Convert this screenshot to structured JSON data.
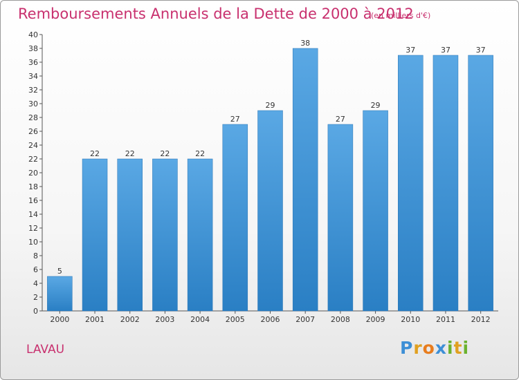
{
  "chart_data": {
    "type": "bar",
    "title": "Remboursements Annuels de la Dette de 2000 à 2012",
    "subtitle": "(en milliers d'€)",
    "categories": [
      "2000",
      "2001",
      "2002",
      "2003",
      "2004",
      "2005",
      "2006",
      "2007",
      "2008",
      "2009",
      "2010",
      "2011",
      "2012"
    ],
    "values": [
      5,
      22,
      22,
      22,
      22,
      27,
      29,
      38,
      27,
      29,
      37,
      37,
      37
    ],
    "ylim": [
      0,
      40
    ],
    "ytick_step": 2,
    "xlabel": "",
    "ylabel": "",
    "bar_color_top": "#5aa8e4",
    "bar_color_bottom": "#2a7fc4"
  },
  "commune": "LAVAU",
  "logo": {
    "letters": [
      "P",
      "r",
      "o",
      "x",
      "i",
      "t",
      "i"
    ],
    "colors": [
      "#3d8fd6",
      "#e0a020",
      "#e87d1e",
      "#3d8fd6",
      "#6ab22e",
      "#e0a020",
      "#6ab22e"
    ]
  }
}
